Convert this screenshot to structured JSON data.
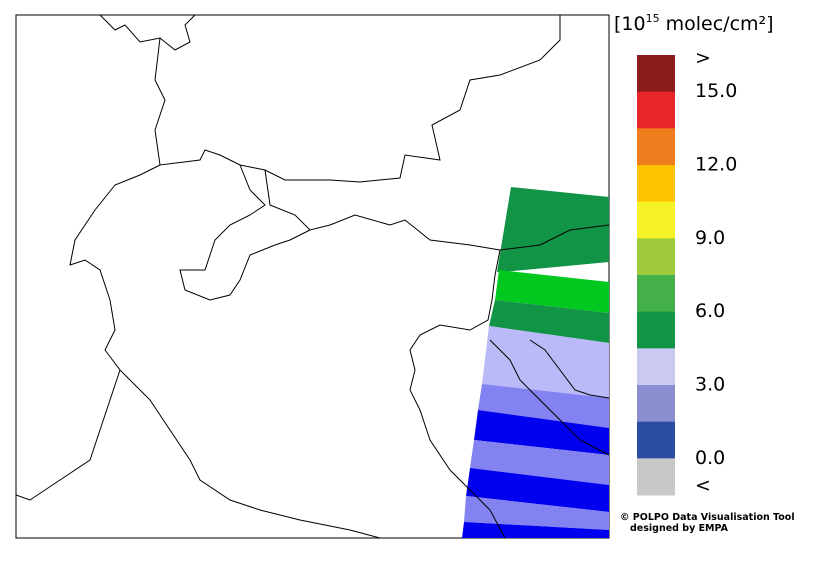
{
  "legend": {
    "title": {
      "prefix": "[10",
      "exponent": "15",
      "suffix": " molec/cm²]"
    },
    "colors": [
      "#8b1c1c",
      "#e8262a",
      "#f07d1e",
      "#ffc400",
      "#f7f226",
      "#9fca3c",
      "#44b04a",
      "#129447",
      "#c9c9f2",
      "#8b8fd2",
      "#2c4ea2",
      "#c8c8c8"
    ],
    "labels": [
      ">",
      "15.0",
      "12.0",
      "9.0",
      "6.0",
      "3.0",
      "0.0",
      "<"
    ]
  },
  "credits": [
    "© POLPO Data Visualisation Tool",
    "designed by EMPA"
  ]
}
